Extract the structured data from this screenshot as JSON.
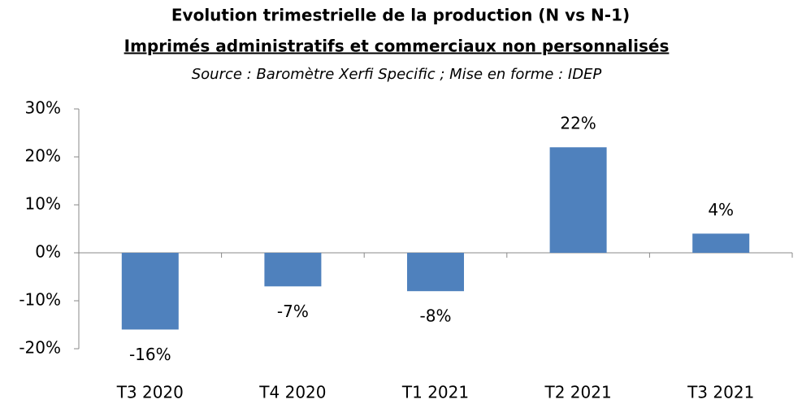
{
  "chart_data": {
    "type": "bar",
    "title": "Evolution trimestrielle de la production (N vs N-1)",
    "subtitle": "Imprimés administratifs et commerciaux non personnalisés",
    "source": "Source : Baromètre Xerfi Specific ; Mise en forme : IDEP",
    "categories": [
      "T3 2020",
      "T4 2020",
      "T1 2021",
      "T2 2021",
      "T3 2021"
    ],
    "values": [
      -16,
      -7,
      -8,
      22,
      4
    ],
    "value_labels": [
      "-16%",
      "-7%",
      "-8%",
      "22%",
      "4%"
    ],
    "color": "#4f81bd",
    "ylim": [
      -20,
      30
    ],
    "yticks": [
      {
        "value": -20,
        "label": "-20%"
      },
      {
        "value": -10,
        "label": "-10%"
      },
      {
        "value": 0,
        "label": "0%"
      },
      {
        "value": 10,
        "label": "10%"
      },
      {
        "value": 20,
        "label": "20%"
      },
      {
        "value": 30,
        "label": "30%"
      }
    ],
    "grid": false
  }
}
